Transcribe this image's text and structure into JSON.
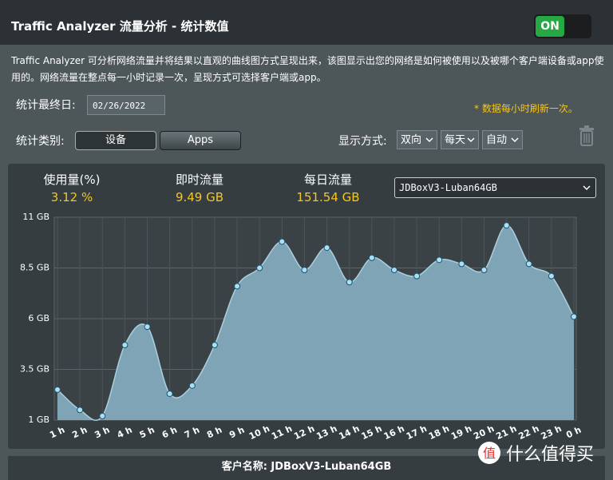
{
  "header": {
    "title": "Traffic Analyzer 流量分析 - 统计数值",
    "toggle": "ON"
  },
  "description": "Traffic Analyzer 可分析网络流量并将结果以直观的曲线图方式呈现出来，该图显示出您的网络是如何被使用以及被哪个客户端设备或app使用的。网络流量在整点每一小时记录一次，呈现方式可选择客户端或app。",
  "controls": {
    "date_label": "统计最终日:",
    "date": "02/26/2022",
    "refresh_note": "* 数据每小时刷新一次。",
    "category_label": "统计类别:",
    "category_options": [
      "设备",
      "Apps"
    ],
    "display_label": "显示方式:",
    "display_options": [
      "双向",
      "每天",
      "自动"
    ]
  },
  "stats": [
    {
      "label": "使用量(%)",
      "value": "3.12 %"
    },
    {
      "label": "即时流量",
      "value": "9.49 GB"
    },
    {
      "label": "每日流量",
      "value": "151.54 GB"
    }
  ],
  "client_select": "JDBoxV3-Luban64GB",
  "chart_data": {
    "type": "area",
    "categories": [
      "1 h",
      "2 h",
      "3 h",
      "4 h",
      "5 h",
      "6 h",
      "7 h",
      "8 h",
      "9 h",
      "10 h",
      "11 h",
      "12 h",
      "13 h",
      "14 h",
      "15 h",
      "16 h",
      "17 h",
      "18 h",
      "19 h",
      "20 h",
      "21 h",
      "22 h",
      "23 h",
      "0 h"
    ],
    "values": [
      2.5,
      1.5,
      1.2,
      4.7,
      5.6,
      2.3,
      2.7,
      4.7,
      7.6,
      8.5,
      9.8,
      8.4,
      9.5,
      7.8,
      9.0,
      8.4,
      8.1,
      8.9,
      8.7,
      8.4,
      10.6,
      8.7,
      8.1,
      6.1
    ],
    "color": "#7fa4b6",
    "ylim": [
      1,
      11
    ],
    "yticks": [
      {
        "value": 1,
        "label": "1 GB"
      },
      {
        "value": 3.5,
        "label": "3.5 GB"
      },
      {
        "value": 6,
        "label": "6 GB"
      },
      {
        "value": 8.5,
        "label": "8.5 GB"
      },
      {
        "value": 11,
        "label": "11 GB"
      }
    ],
    "grid": true
  },
  "footer": {
    "client_name": "客户名称: JDBoxV3-Luban64GB"
  },
  "watermark": "什么值得买"
}
